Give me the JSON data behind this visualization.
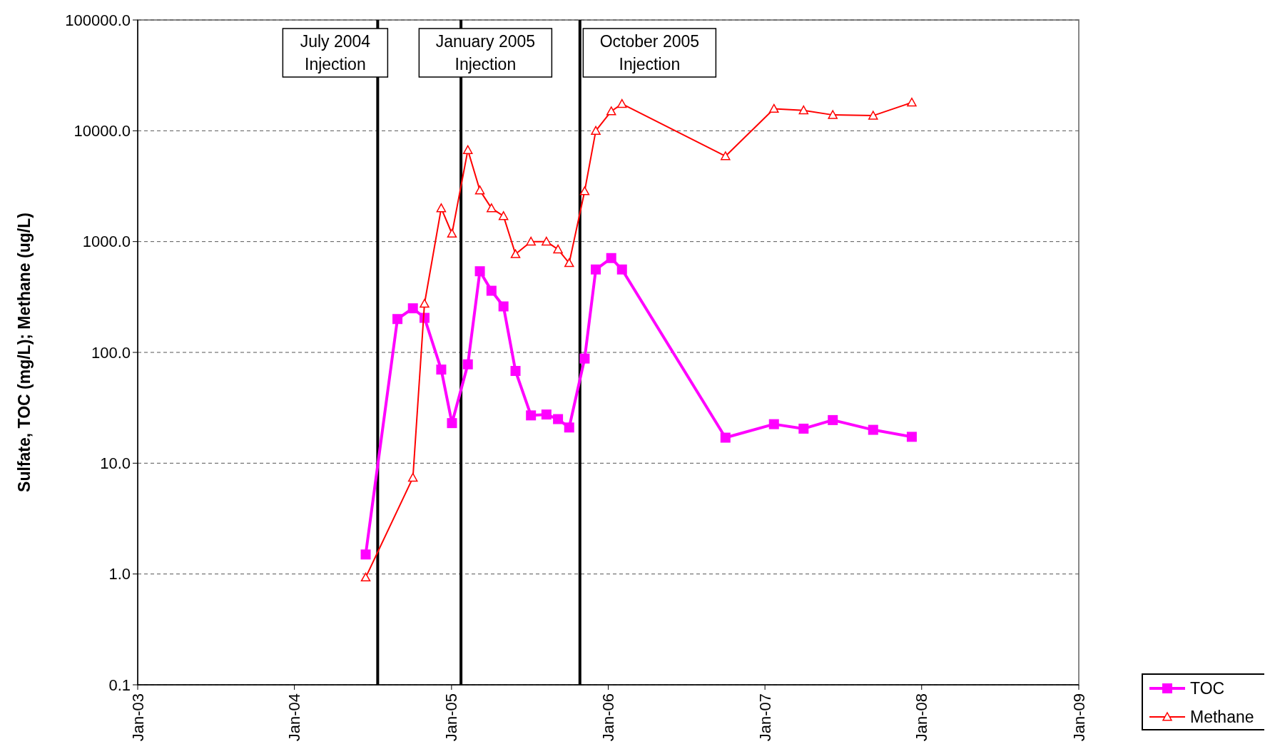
{
  "chart_data": {
    "type": "line",
    "ylabel": "Sulfate, TOC (mg/L); Methane (ug/L)",
    "log": "y",
    "ylim": [
      0.1,
      100000
    ],
    "yticks": [
      {
        "value": 0.1,
        "label": "0.1"
      },
      {
        "value": 1,
        "label": "1.0"
      },
      {
        "value": 10,
        "label": "10.0"
      },
      {
        "value": 100,
        "label": "100.0"
      },
      {
        "value": 1000,
        "label": "1000.0"
      },
      {
        "value": 10000,
        "label": "10000.0"
      },
      {
        "value": 100000,
        "label": "100000.0"
      }
    ],
    "xlim": [
      "2003-01",
      "2009-01"
    ],
    "xticks": [
      {
        "value": "2003-01",
        "label": "Jan-03"
      },
      {
        "value": "2004-01",
        "label": "Jan-04"
      },
      {
        "value": "2005-01",
        "label": "Jan-05"
      },
      {
        "value": "2006-01",
        "label": "Jan-06"
      },
      {
        "value": "2007-01",
        "label": "Jan-07"
      },
      {
        "value": "2008-01",
        "label": "Jan-08"
      },
      {
        "value": "2009-01",
        "label": "Jan-09"
      }
    ],
    "grid": "y",
    "legend": "bottom right",
    "x": [
      "2004-06-15",
      "2004-08-28",
      "2004-10-03",
      "2004-10-30",
      "2004-12-08",
      "2005-01-02",
      "2005-02-08",
      "2005-03-08",
      "2005-04-04",
      "2005-05-02",
      "2005-05-30",
      "2005-07-05",
      "2005-08-10",
      "2005-09-06",
      "2005-10-02",
      "2005-11-07",
      "2005-12-03",
      "2006-01-08",
      "2006-02-02",
      "2006-10-01",
      "2007-01-22",
      "2007-04-01",
      "2007-06-08",
      "2007-09-10",
      "2007-12-09"
    ],
    "series": [
      {
        "name": "TOC",
        "color": "#ff00ff",
        "marker": "square",
        "values": [
          1.5,
          200,
          250,
          205,
          70,
          23,
          78,
          540,
          360,
          260,
          68,
          27,
          27.5,
          25,
          21,
          88,
          560,
          710,
          560,
          17,
          22.5,
          20.5,
          24.5,
          20,
          17.3
        ]
      },
      {
        "name": "Methane",
        "color": "#ff0000",
        "marker": "triangle",
        "x": [
          "2004-06-15",
          "2004-10-03",
          "2004-10-30",
          "2004-12-08",
          "2005-01-02",
          "2005-02-08",
          "2005-03-08",
          "2005-04-04",
          "2005-05-02",
          "2005-05-30",
          "2005-07-05",
          "2005-08-10",
          "2005-09-06",
          "2005-10-02",
          "2005-11-07",
          "2005-12-03",
          "2006-01-08",
          "2006-02-02",
          "2006-10-01",
          "2007-01-22",
          "2007-04-01",
          "2007-06-08",
          "2007-09-10",
          "2007-12-09"
        ],
        "values": [
          0.93,
          7.4,
          275,
          2000,
          1180,
          6700,
          2900,
          2000,
          1700,
          770,
          1000,
          1000,
          850,
          640,
          2850,
          10000,
          15000,
          17500,
          5900,
          15800,
          15300,
          13900,
          13700,
          18000
        ]
      }
    ],
    "ref_lines": [
      {
        "axis": "x",
        "value": "2004-07-13",
        "label": "July 2004\nInjection",
        "color": "#000000"
      },
      {
        "axis": "x",
        "value": "2005-01-23",
        "label": "January 2005\nInjection",
        "color": "#000000"
      },
      {
        "axis": "x",
        "value": "2005-10-27",
        "label": "October 2005\nInjection",
        "color": "#000000"
      }
    ]
  }
}
